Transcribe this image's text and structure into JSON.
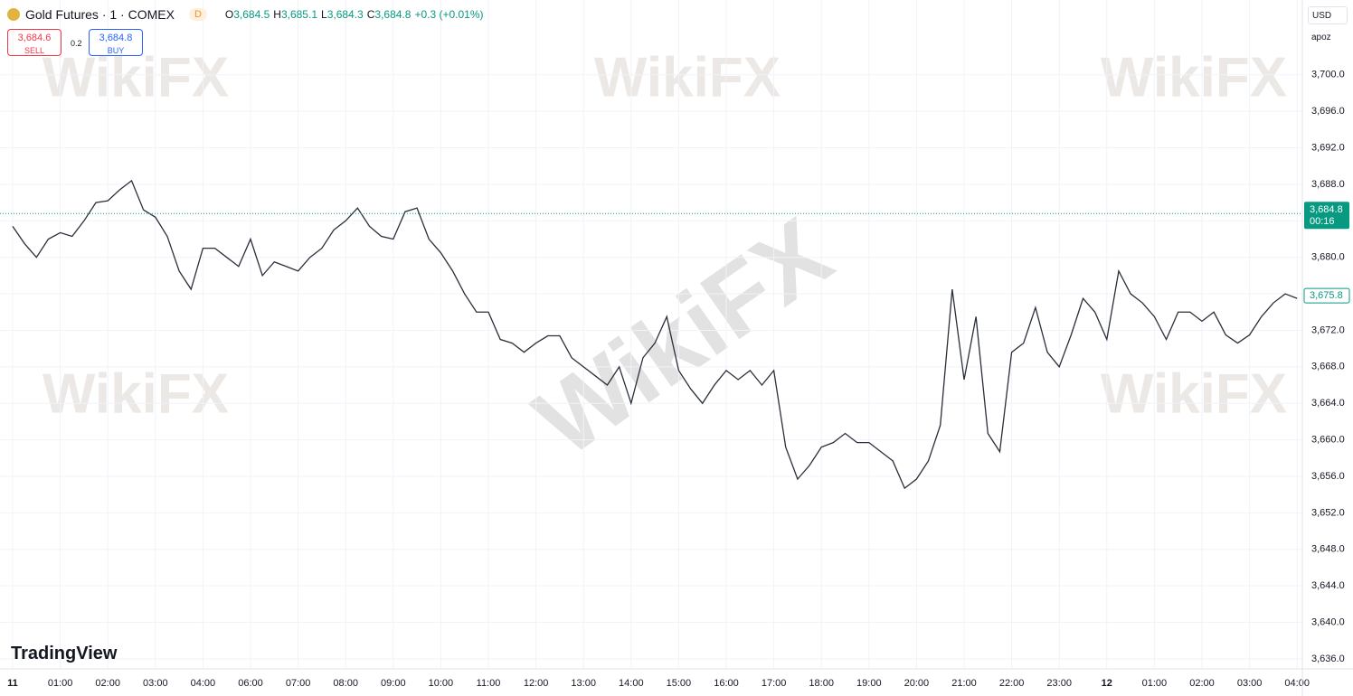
{
  "toolbar": {
    "symbol": "Gold Futures · 1 · COMEX",
    "badge": "D",
    "ohlc": [
      {
        "key": "O",
        "value": "3,684.5"
      },
      {
        "key": "H",
        "value": "3,685.1"
      },
      {
        "key": "L",
        "value": "3,684.3"
      },
      {
        "key": "C",
        "value": "3,684.8"
      }
    ],
    "change": "+0.3 (+0.01%)",
    "sell": {
      "price": "3,684.6",
      "label": "SELL"
    },
    "spread": "0.2",
    "buy": {
      "price": "3,684.8",
      "label": "BUY"
    },
    "currency": "USD",
    "unit": "apoz",
    "brand": "TradingView",
    "watermark": "WikiFX"
  },
  "chart_data": {
    "type": "line",
    "color": "#2a2e39",
    "grid": true,
    "categories": [
      "11",
      null,
      null,
      null,
      "01:00",
      null,
      null,
      null,
      "02:00",
      null,
      null,
      null,
      "03:00",
      null,
      null,
      null,
      "04:00",
      null,
      null,
      null,
      "06:00",
      null,
      null,
      null,
      "07:00",
      null,
      null,
      null,
      "08:00",
      null,
      null,
      null,
      "09:00",
      null,
      null,
      null,
      "10:00",
      null,
      null,
      null,
      "11:00",
      null,
      null,
      null,
      "12:00",
      null,
      null,
      null,
      "13:00",
      null,
      null,
      null,
      "14:00",
      null,
      null,
      null,
      "15:00",
      null,
      null,
      null,
      "16:00",
      null,
      null,
      null,
      "17:00",
      null,
      null,
      null,
      "18:00",
      null,
      null,
      null,
      "19:00",
      null,
      null,
      null,
      "20:00",
      null,
      null,
      null,
      "21:00",
      null,
      null,
      null,
      "22:00",
      null,
      null,
      null,
      "23:00",
      null,
      null,
      null,
      "12",
      null,
      null,
      null,
      "01:00",
      null,
      null,
      null,
      "02:00",
      null,
      null,
      null,
      "03:00",
      null,
      null,
      null,
      "04:00"
    ],
    "values": [
      3683.4,
      3681.5,
      3680,
      3682,
      3682.7,
      3682.3,
      3684,
      3686,
      3686.2,
      3687.4,
      3688.4,
      3685.2,
      3684.4,
      3682.3,
      3678.5,
      3676.5,
      3681,
      3681,
      3680,
      3679,
      3682,
      3678,
      3679.5,
      3679,
      3678.5,
      3680,
      3681,
      3683,
      3684,
      3685.4,
      3683.4,
      3682.3,
      3682,
      3685,
      3685.4,
      3682,
      3680.5,
      3678.5,
      3676,
      3674,
      3674,
      3671,
      3670.6,
      3669.6,
      3670.6,
      3671.4,
      3671.4,
      3669,
      3668,
      3667,
      3666,
      3668,
      3664,
      3669,
      3670.6,
      3673.5,
      3667.6,
      3665.6,
      3664,
      3666,
      3667.6,
      3666.6,
      3667.6,
      3666,
      3667.6,
      3659.2,
      3655.7,
      3657.2,
      3659.2,
      3659.7,
      3660.7,
      3659.7,
      3659.7,
      3658.7,
      3657.7,
      3654.7,
      3655.7,
      3657.7,
      3661.6,
      3676.5,
      3666.6,
      3673.5,
      3660.7,
      3658.7,
      3669.6,
      3670.6,
      3674.5,
      3669.6,
      3668,
      3671.5,
      3675.5,
      3674,
      3671,
      3678.5,
      3676,
      3675,
      3673.5,
      3671,
      3674,
      3674,
      3673,
      3674,
      3671.5,
      3670.6,
      3671.5,
      3673.5,
      3675,
      3676,
      3675.5
    ],
    "ylim": [
      3634.9,
      3708.2
    ],
    "yticks": [
      {
        "value": 3636,
        "label": "3,636.0"
      },
      {
        "value": 3640,
        "label": "3,640.0"
      },
      {
        "value": 3644,
        "label": "3,644.0"
      },
      {
        "value": 3648,
        "label": "3,648.0"
      },
      {
        "value": 3652,
        "label": "3,652.0"
      },
      {
        "value": 3656,
        "label": "3,656.0"
      },
      {
        "value": 3660,
        "label": "3,660.0"
      },
      {
        "value": 3664,
        "label": "3,664.0"
      },
      {
        "value": 3668,
        "label": "3,668.0"
      },
      {
        "value": 3672,
        "label": "3,672.0"
      },
      {
        "value": 3676,
        "label": "3,676.0"
      },
      {
        "value": 3680,
        "label": "3,680.0"
      },
      {
        "value": 3684,
        "label": "3,684.0"
      },
      {
        "value": 3688,
        "label": "3,688.0"
      },
      {
        "value": 3692,
        "label": "3,692.0"
      },
      {
        "value": 3696,
        "label": "3,696.0"
      },
      {
        "value": 3700,
        "label": "3,700.0"
      }
    ],
    "last_price": {
      "value": 3684.8,
      "label": "3,684.8",
      "countdown": "00:16",
      "color": "#089981"
    },
    "close_marker": {
      "value": 3675.8,
      "label": "3,675.8",
      "color": "#089981"
    }
  }
}
